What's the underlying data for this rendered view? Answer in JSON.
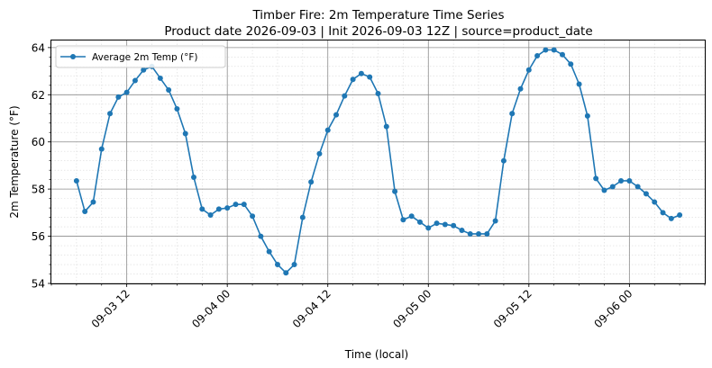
{
  "chart_data": {
    "type": "line",
    "title": "Timber Fire: 2m Temperature Time Series",
    "subtitle": "Product date 2026-09-03 | Init 2026-09-03 12Z | source=product_date",
    "xlabel": "Time (local)",
    "ylabel": "2m Temperature (°F)",
    "ylim": [
      54,
      64.3
    ],
    "y_ticks": [
      54,
      56,
      58,
      60,
      62,
      64
    ],
    "x_range": [
      "2026-09-03 03:00",
      "2026-09-06 09:00"
    ],
    "x_ticks": [
      {
        "value": "2026-09-03 12:00",
        "label": "09-03 12"
      },
      {
        "value": "2026-09-04 00:00",
        "label": "09-04 00"
      },
      {
        "value": "2026-09-04 12:00",
        "label": "09-04 12"
      },
      {
        "value": "2026-09-05 00:00",
        "label": "09-05 00"
      },
      {
        "value": "2026-09-05 12:00",
        "label": "09-05 12"
      },
      {
        "value": "2026-09-06 00:00",
        "label": "09-06 00"
      }
    ],
    "grid": true,
    "legend_position": "top-left",
    "series_color": "#1f77b4",
    "series": [
      {
        "name": "Average 2m Temp (°F)",
        "x": [
          "2026-09-03 06:00",
          "2026-09-03 07:00",
          "2026-09-03 08:00",
          "2026-09-03 09:00",
          "2026-09-03 10:00",
          "2026-09-03 11:00",
          "2026-09-03 12:00",
          "2026-09-03 13:00",
          "2026-09-03 14:00",
          "2026-09-03 15:00",
          "2026-09-03 16:00",
          "2026-09-03 17:00",
          "2026-09-03 18:00",
          "2026-09-03 19:00",
          "2026-09-03 20:00",
          "2026-09-03 21:00",
          "2026-09-03 22:00",
          "2026-09-03 23:00",
          "2026-09-04 00:00",
          "2026-09-04 01:00",
          "2026-09-04 02:00",
          "2026-09-04 03:00",
          "2026-09-04 04:00",
          "2026-09-04 05:00",
          "2026-09-04 06:00",
          "2026-09-04 07:00",
          "2026-09-04 08:00",
          "2026-09-04 09:00",
          "2026-09-04 10:00",
          "2026-09-04 11:00",
          "2026-09-04 12:00",
          "2026-09-04 13:00",
          "2026-09-04 14:00",
          "2026-09-04 15:00",
          "2026-09-04 16:00",
          "2026-09-04 17:00",
          "2026-09-04 18:00",
          "2026-09-04 19:00",
          "2026-09-04 20:00",
          "2026-09-04 21:00",
          "2026-09-04 22:00",
          "2026-09-04 23:00",
          "2026-09-05 00:00",
          "2026-09-05 01:00",
          "2026-09-05 02:00",
          "2026-09-05 03:00",
          "2026-09-05 04:00",
          "2026-09-05 05:00",
          "2026-09-05 06:00",
          "2026-09-05 07:00",
          "2026-09-05 08:00",
          "2026-09-05 09:00",
          "2026-09-05 10:00",
          "2026-09-05 11:00",
          "2026-09-05 12:00",
          "2026-09-05 13:00",
          "2026-09-05 14:00",
          "2026-09-05 15:00",
          "2026-09-05 16:00",
          "2026-09-05 17:00",
          "2026-09-05 18:00",
          "2026-09-05 19:00",
          "2026-09-05 20:00",
          "2026-09-05 21:00",
          "2026-09-05 22:00",
          "2026-09-05 23:00",
          "2026-09-06 00:00",
          "2026-09-06 01:00",
          "2026-09-06 02:00",
          "2026-09-06 03:00",
          "2026-09-06 04:00",
          "2026-09-06 05:00",
          "2026-09-06 06:00"
        ],
        "values": [
          58.35,
          57.05,
          57.45,
          59.7,
          61.2,
          61.9,
          62.1,
          62.6,
          63.05,
          63.2,
          62.7,
          62.2,
          61.4,
          60.35,
          58.5,
          57.15,
          56.9,
          57.15,
          57.2,
          57.35,
          57.35,
          56.85,
          56.0,
          55.35,
          54.8,
          54.45,
          54.8,
          56.8,
          58.3,
          59.5,
          60.5,
          61.15,
          61.95,
          62.65,
          62.9,
          62.75,
          62.05,
          60.65,
          57.9,
          56.7,
          56.85,
          56.6,
          56.35,
          56.55,
          56.5,
          56.45,
          56.25,
          56.1,
          56.1,
          56.1,
          56.65,
          59.2,
          61.2,
          62.25,
          63.05,
          63.65,
          63.9,
          63.9,
          63.7,
          63.3,
          62.45,
          61.1,
          58.45,
          57.95,
          58.1,
          58.35,
          58.35,
          58.1,
          57.8,
          57.45,
          57.0,
          56.75,
          56.9
        ]
      }
    ]
  }
}
